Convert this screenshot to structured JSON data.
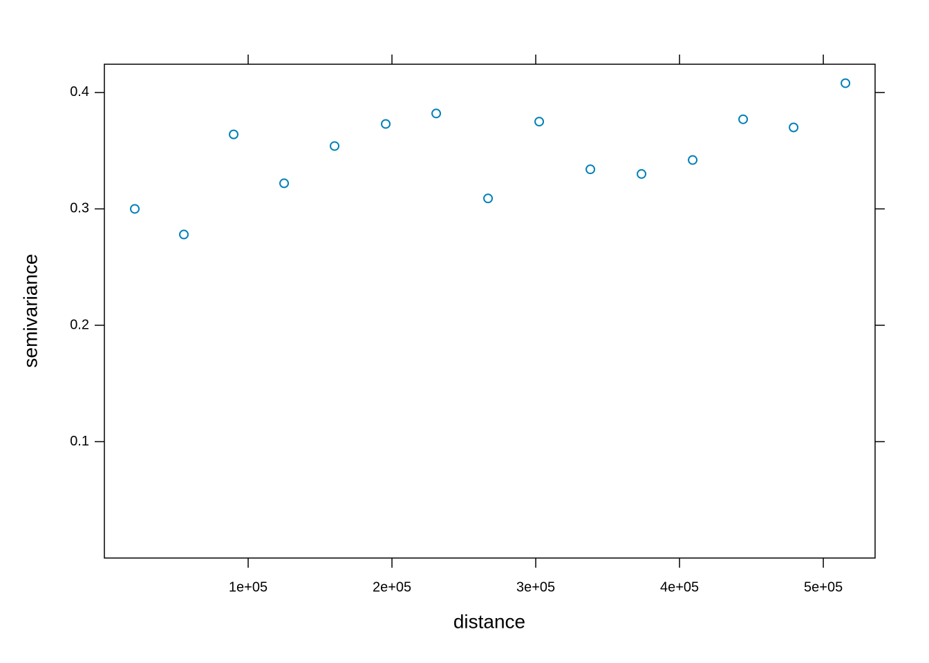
{
  "chart_data": {
    "type": "scatter",
    "xlabel": "distance",
    "ylabel": "semivariance",
    "x": [
      21154,
      55288,
      89904,
      125000,
      160096,
      195673,
      230769,
      266827,
      302404,
      337981,
      373558,
      409135,
      444231,
      479327,
      515385
    ],
    "values": [
      0.3,
      0.278,
      0.364,
      0.322,
      0.354,
      0.373,
      0.382,
      0.309,
      0.375,
      0.334,
      0.33,
      0.342,
      0.377,
      0.37,
      0.408
    ],
    "color": "#0080b8",
    "xlim": [
      0,
      536000
    ],
    "ylim": [
      0,
      0.4243
    ],
    "xticks": [
      {
        "value": 100000,
        "label": "1e+05"
      },
      {
        "value": 200000,
        "label": "2e+05"
      },
      {
        "value": 300000,
        "label": "3e+05"
      },
      {
        "value": 400000,
        "label": "4e+05"
      },
      {
        "value": 500000,
        "label": "5e+05"
      }
    ],
    "yticks": [
      0.1,
      0.2,
      0.3,
      0.4
    ]
  }
}
